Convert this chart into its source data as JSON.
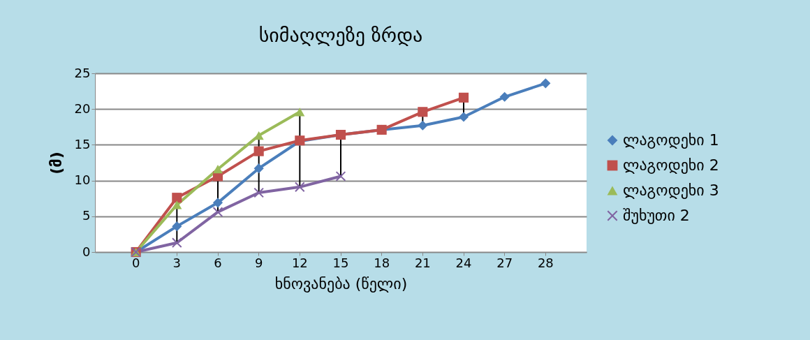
{
  "chart_data": {
    "type": "line",
    "title": "სიმაღლეზე ზრდა",
    "xlabel": "ხნოვანება (წელი)",
    "ylabel": "(მ)",
    "categories": [
      "0",
      "3",
      "6",
      "9",
      "12",
      "15",
      "18",
      "21",
      "24",
      "27",
      "28"
    ],
    "ylim": [
      0,
      25
    ],
    "yticks": [
      0,
      5,
      10,
      15,
      20,
      25
    ],
    "grid": "y",
    "legend": "right",
    "series": [
      {
        "name": "ლაგოდეხი 1",
        "color": "#4a7ebb",
        "marker": "diamond",
        "values": [
          0,
          3.6,
          6.9,
          11.7,
          15.5,
          16.4,
          17.1,
          17.7,
          18.9,
          21.7,
          23.6
        ]
      },
      {
        "name": "ლაგოდეხი 2",
        "color": "#c0504d",
        "marker": "square",
        "values": [
          0,
          7.6,
          10.6,
          14.1,
          15.6,
          16.4,
          17.1,
          19.6,
          21.6,
          null,
          null
        ]
      },
      {
        "name": "ლაგოდეხი 3",
        "color": "#9bbb59",
        "marker": "triangle",
        "values": [
          0,
          6.6,
          11.6,
          16.3,
          19.6,
          null,
          null,
          null,
          null,
          null,
          null
        ]
      },
      {
        "name": "შუხუთი 2",
        "color": "#8064a2",
        "marker": "cross",
        "values": [
          0,
          1.3,
          5.6,
          8.3,
          9.1,
          10.6,
          null,
          null,
          null,
          null,
          null
        ]
      }
    ]
  }
}
